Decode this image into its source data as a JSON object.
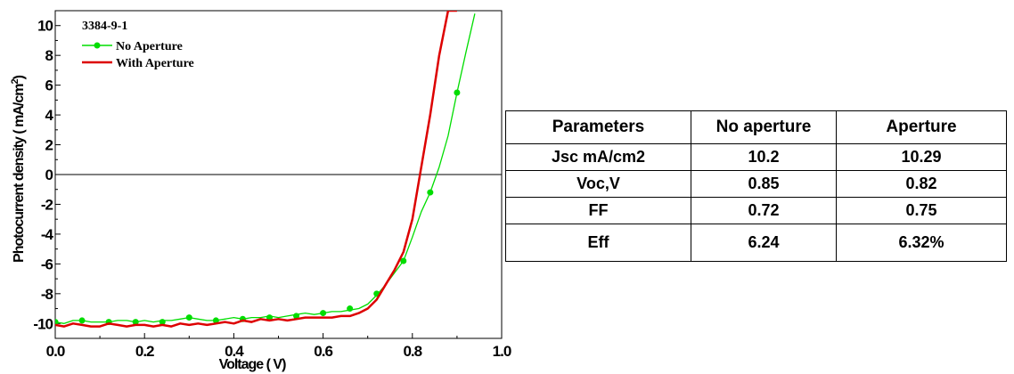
{
  "chart_data": {
    "type": "line",
    "title": "",
    "sample_id": "3384-9-1",
    "xlabel": "Voltage ( V)",
    "ylabel_main": "Photocurrent density ( mA/cm",
    "ylabel_sup": "2",
    "ylabel_end": ")",
    "xlim": [
      0.0,
      1.0
    ],
    "ylim": [
      -11.0,
      11.0
    ],
    "x_ticks": [
      "0.0",
      "0.2",
      "0.4",
      "0.6",
      "0.8",
      "1.0"
    ],
    "x_tick_values": [
      0.0,
      0.2,
      0.4,
      0.6,
      0.8,
      1.0
    ],
    "y_ticks": [
      "10",
      "8",
      "6",
      "4",
      "2",
      "0",
      "-2",
      "-4",
      "-6",
      "-8",
      "-10"
    ],
    "y_tick_values": [
      10,
      8,
      6,
      4,
      2,
      0,
      -2,
      -4,
      -6,
      -8,
      -10
    ],
    "legend_position": "top-left",
    "zero_line": true,
    "series": [
      {
        "name": "No Aperture",
        "color": "#00dd00",
        "marker": "circle",
        "x": [
          0.0,
          0.02,
          0.04,
          0.06,
          0.08,
          0.1,
          0.12,
          0.14,
          0.16,
          0.18,
          0.2,
          0.22,
          0.24,
          0.26,
          0.28,
          0.3,
          0.32,
          0.34,
          0.36,
          0.38,
          0.4,
          0.42,
          0.44,
          0.46,
          0.48,
          0.5,
          0.52,
          0.54,
          0.56,
          0.58,
          0.6,
          0.62,
          0.64,
          0.66,
          0.68,
          0.7,
          0.72,
          0.74,
          0.76,
          0.78,
          0.8,
          0.82,
          0.84,
          0.86,
          0.88,
          0.9,
          0.92,
          0.94
        ],
        "y": [
          -9.9,
          -10.0,
          -9.8,
          -9.8,
          -9.9,
          -9.9,
          -9.9,
          -9.8,
          -9.8,
          -9.9,
          -9.8,
          -9.9,
          -9.8,
          -9.8,
          -9.7,
          -9.6,
          -9.7,
          -9.8,
          -9.8,
          -9.7,
          -9.6,
          -9.7,
          -9.6,
          -9.6,
          -9.5,
          -9.6,
          -9.5,
          -9.4,
          -9.3,
          -9.4,
          -9.3,
          -9.2,
          -9.2,
          -9.1,
          -9.0,
          -8.7,
          -8.1,
          -7.4,
          -6.6,
          -5.8,
          -4.2,
          -2.5,
          -1.2,
          0.5,
          2.6,
          5.5,
          8.2,
          10.8
        ],
        "marker_x": [
          0.0,
          0.06,
          0.12,
          0.18,
          0.24,
          0.3,
          0.36,
          0.42,
          0.48,
          0.54,
          0.6,
          0.66,
          0.72,
          0.78,
          0.84,
          0.9
        ],
        "marker_y": [
          -9.9,
          -9.8,
          -9.9,
          -9.9,
          -9.9,
          -9.6,
          -9.8,
          -9.7,
          -9.6,
          -9.5,
          -9.3,
          -9.0,
          -8.0,
          -5.8,
          -1.2,
          5.5
        ]
      },
      {
        "name": "With Aperture",
        "color": "#dd0000",
        "marker": "none",
        "x": [
          0.0,
          0.02,
          0.04,
          0.06,
          0.08,
          0.1,
          0.12,
          0.14,
          0.16,
          0.18,
          0.2,
          0.22,
          0.24,
          0.26,
          0.28,
          0.3,
          0.32,
          0.34,
          0.36,
          0.38,
          0.4,
          0.42,
          0.44,
          0.46,
          0.48,
          0.5,
          0.52,
          0.54,
          0.56,
          0.58,
          0.6,
          0.62,
          0.64,
          0.66,
          0.68,
          0.7,
          0.72,
          0.74,
          0.76,
          0.78,
          0.8,
          0.82,
          0.84,
          0.86,
          0.88,
          0.89,
          0.9
        ],
        "y": [
          -10.1,
          -10.2,
          -10.0,
          -10.1,
          -10.2,
          -10.2,
          -10.0,
          -10.1,
          -10.2,
          -10.1,
          -10.1,
          -10.2,
          -10.1,
          -10.2,
          -10.0,
          -10.1,
          -10.0,
          -10.1,
          -10.0,
          -9.9,
          -10.0,
          -9.8,
          -9.9,
          -9.7,
          -9.8,
          -9.7,
          -9.8,
          -9.7,
          -9.6,
          -9.6,
          -9.6,
          -9.6,
          -9.5,
          -9.5,
          -9.3,
          -9.0,
          -8.4,
          -7.4,
          -6.4,
          -5.2,
          -3.0,
          0.5,
          4.0,
          8.0,
          11.0,
          11.0,
          11.0
        ]
      }
    ]
  },
  "table": {
    "headers": [
      "Parameters",
      "No aperture",
      "Aperture"
    ],
    "rows": [
      [
        "Jsc mA/cm2",
        "10.2",
        "10.29"
      ],
      [
        "Voc,V",
        "0.85",
        "0.82"
      ],
      [
        "FF",
        "0.72",
        "0.75"
      ],
      [
        "Eff",
        "6.24",
        "6.32%"
      ]
    ]
  }
}
